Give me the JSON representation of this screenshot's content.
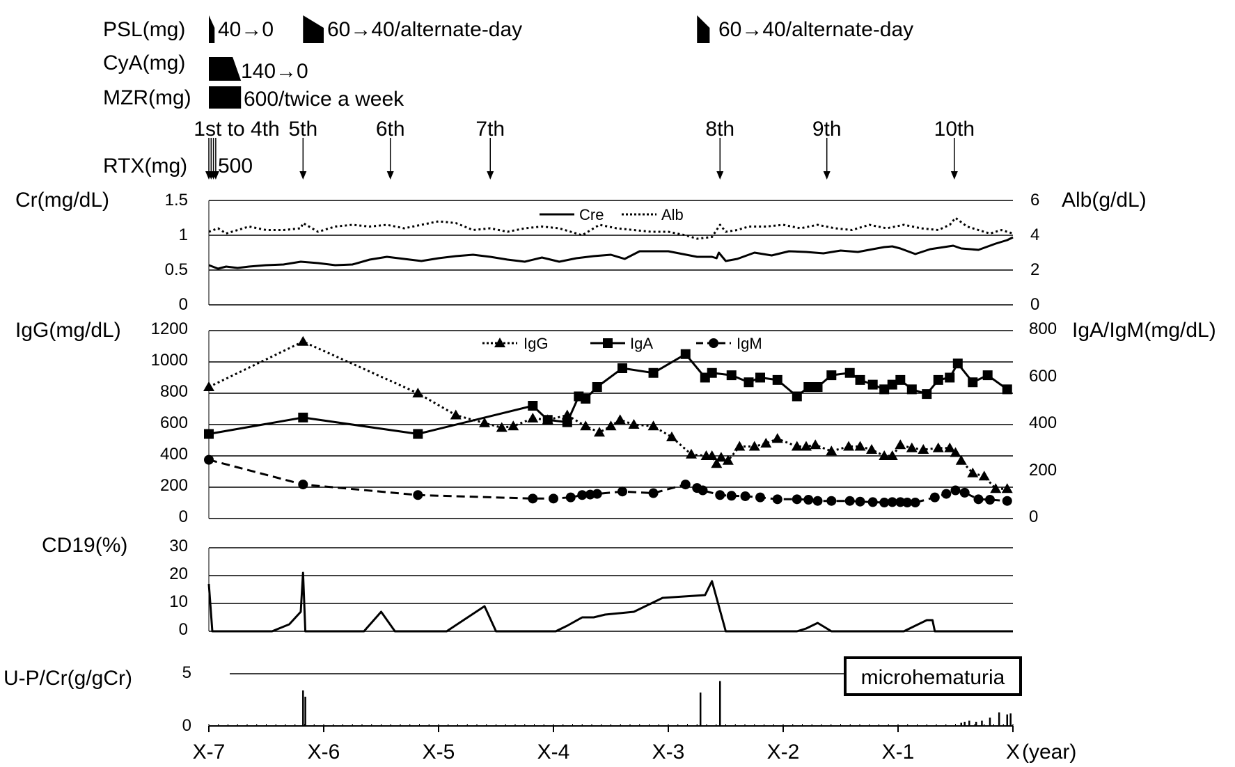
{
  "treatments": [
    {
      "name": "PSL(mg)",
      "blocks": [
        {
          "start": -7.0,
          "end": -6.95,
          "shape": "ramp-up",
          "note": "40→0"
        },
        {
          "start": -6.18,
          "end": -6.0,
          "shape": "ramp-up",
          "note": "60→40/alternate-day"
        },
        {
          "start": -2.75,
          "end": -2.64,
          "shape": "ramp-up",
          "note": "60→40/alternate-day"
        }
      ]
    },
    {
      "name": "CyA(mg)",
      "blocks": [
        {
          "start": -7.0,
          "end": -6.72,
          "shape": "ramp-down",
          "note": "140→0"
        }
      ]
    },
    {
      "name": "MZR(mg)",
      "blocks": [
        {
          "start": -7.0,
          "end": -6.72,
          "shape": "rect",
          "note": "600/twice a week"
        }
      ]
    }
  ],
  "rtx": {
    "name": "RTX(mg)",
    "dose": "500",
    "doses": [
      {
        "label": "1st to 4th",
        "times": [
          -7.0,
          -6.98,
          -6.96,
          -6.94
        ]
      },
      {
        "label": "5th",
        "times": [
          -6.18
        ]
      },
      {
        "label": "6th",
        "times": [
          -5.42
        ]
      },
      {
        "label": "7th",
        "times": [
          -4.55
        ]
      },
      {
        "label": "8th",
        "times": [
          -2.55
        ]
      },
      {
        "label": "9th",
        "times": [
          -1.62
        ]
      },
      {
        "label": "10th",
        "times": [
          -0.51
        ]
      }
    ]
  },
  "annotation": "microhematuria",
  "chart_data": [
    {
      "type": "line",
      "xlabel": "(year)",
      "ylabel": "Cr(mg/dL)",
      "y2label": "Alb(g/dL)",
      "ylim": [
        0,
        1.5
      ],
      "y2lim": [
        0,
        6
      ],
      "yticks": [
        "0",
        "0.5",
        "1",
        "1.5"
      ],
      "y2ticks": [
        "0",
        "2",
        "4",
        "6"
      ],
      "grid": true,
      "legend": "top-center",
      "series": [
        {
          "name": "Cre",
          "axis": "left",
          "style": "solid",
          "color": "#000000",
          "x": [
            -7.0,
            -6.92,
            -6.85,
            -6.75,
            -6.65,
            -6.5,
            -6.35,
            -6.2,
            -6.05,
            -5.9,
            -5.75,
            -5.6,
            -5.45,
            -5.3,
            -5.15,
            -5.0,
            -4.85,
            -4.7,
            -4.55,
            -4.4,
            -4.25,
            -4.1,
            -3.95,
            -3.8,
            -3.65,
            -3.5,
            -3.38,
            -3.25,
            -3.0,
            -2.75,
            -2.62,
            -2.58,
            -2.56,
            -2.5,
            -2.4,
            -2.25,
            -2.1,
            -1.95,
            -1.8,
            -1.65,
            -1.5,
            -1.35,
            -1.22,
            -1.12,
            -1.05,
            -0.98,
            -0.85,
            -0.72,
            -0.6,
            -0.52,
            -0.45,
            -0.3,
            -0.15,
            -0.05,
            0.0
          ],
          "y": [
            0.57,
            0.52,
            0.55,
            0.53,
            0.55,
            0.57,
            0.58,
            0.62,
            0.6,
            0.57,
            0.58,
            0.65,
            0.69,
            0.66,
            0.63,
            0.67,
            0.7,
            0.72,
            0.69,
            0.65,
            0.62,
            0.68,
            0.62,
            0.67,
            0.7,
            0.72,
            0.66,
            0.77,
            0.77,
            0.69,
            0.69,
            0.67,
            0.75,
            0.63,
            0.66,
            0.75,
            0.71,
            0.77,
            0.76,
            0.74,
            0.78,
            0.76,
            0.8,
            0.83,
            0.84,
            0.81,
            0.73,
            0.8,
            0.83,
            0.85,
            0.81,
            0.79,
            0.88,
            0.93,
            0.97
          ]
        },
        {
          "name": "Alb",
          "axis": "right",
          "style": "dotted",
          "color": "#000000",
          "x": [
            -7.0,
            -6.92,
            -6.85,
            -6.75,
            -6.65,
            -6.5,
            -6.35,
            -6.2,
            -6.18,
            -6.05,
            -5.9,
            -5.75,
            -5.6,
            -5.45,
            -5.3,
            -5.15,
            -5.0,
            -4.85,
            -4.7,
            -4.55,
            -4.4,
            -4.25,
            -4.1,
            -3.95,
            -3.85,
            -3.75,
            -3.6,
            -3.45,
            -3.3,
            -3.15,
            -3.0,
            -2.85,
            -2.75,
            -2.62,
            -2.55,
            -2.5,
            -2.4,
            -2.3,
            -2.15,
            -2.0,
            -1.85,
            -1.7,
            -1.55,
            -1.4,
            -1.25,
            -1.1,
            -0.95,
            -0.8,
            -0.65,
            -0.55,
            -0.5,
            -0.4,
            -0.3,
            -0.2,
            -0.1,
            0.0
          ],
          "y": [
            4.2,
            4.4,
            4.1,
            4.3,
            4.5,
            4.3,
            4.3,
            4.4,
            4.7,
            4.2,
            4.5,
            4.6,
            4.5,
            4.6,
            4.4,
            4.6,
            4.8,
            4.7,
            4.3,
            4.4,
            4.2,
            4.4,
            4.5,
            4.4,
            4.2,
            4.0,
            4.6,
            4.4,
            4.3,
            4.2,
            4.2,
            4.0,
            3.8,
            3.9,
            4.6,
            4.2,
            4.3,
            4.5,
            4.5,
            4.6,
            4.4,
            4.6,
            4.4,
            4.3,
            4.6,
            4.4,
            4.6,
            4.4,
            4.3,
            4.6,
            5.0,
            4.5,
            4.3,
            4.1,
            4.3,
            4.1
          ]
        }
      ]
    },
    {
      "type": "line",
      "ylabel": "IgG(mg/dL)",
      "y2label": "IgA/IgM(mg/dL)",
      "ylim": [
        0,
        1200
      ],
      "y2lim": [
        0,
        800
      ],
      "yticks": [
        "0",
        "200",
        "400",
        "600",
        "800",
        "1000",
        "1200"
      ],
      "y2ticks": [
        "0",
        "200",
        "400",
        "600",
        "800"
      ],
      "grid": true,
      "legend": "top-center",
      "series": [
        {
          "name": "IgG",
          "axis": "left",
          "style": "dotted",
          "marker": "triangle",
          "color": "#000000",
          "x": [
            -7.0,
            -6.18,
            -5.18,
            -4.85,
            -4.6,
            -4.45,
            -4.35,
            -4.18,
            -4.05,
            -3.88,
            -3.72,
            -3.6,
            -3.5,
            -3.42,
            -3.3,
            -3.13,
            -2.97,
            -2.8,
            -2.67,
            -2.62,
            -2.58,
            -2.54,
            -2.48,
            -2.38,
            -2.25,
            -2.15,
            -2.05,
            -1.88,
            -1.8,
            -1.72,
            -1.58,
            -1.43,
            -1.33,
            -1.23,
            -1.12,
            -1.05,
            -0.98,
            -0.88,
            -0.78,
            -0.65,
            -0.55,
            -0.5,
            -0.45,
            -0.35,
            -0.25,
            -0.15,
            -0.05
          ],
          "y": [
            840,
            1130,
            800,
            660,
            610,
            580,
            590,
            640,
            630,
            660,
            590,
            550,
            590,
            630,
            600,
            590,
            520,
            410,
            400,
            400,
            350,
            390,
            370,
            460,
            460,
            480,
            510,
            460,
            460,
            470,
            430,
            460,
            460,
            440,
            400,
            400,
            470,
            450,
            440,
            450,
            450,
            420,
            370,
            290,
            270,
            190,
            190
          ]
        },
        {
          "name": "IgA",
          "axis": "right",
          "style": "solid",
          "marker": "square",
          "color": "#000000",
          "x": [
            -7.0,
            -6.18,
            -5.18,
            -4.18,
            -4.05,
            -3.88,
            -3.78,
            -3.72,
            -3.62,
            -3.4,
            -3.13,
            -2.85,
            -2.68,
            -2.62,
            -2.45,
            -2.3,
            -2.2,
            -2.05,
            -1.88,
            -1.78,
            -1.7,
            -1.58,
            -1.42,
            -1.33,
            -1.22,
            -1.12,
            -1.05,
            -0.98,
            -0.88,
            -0.75,
            -0.65,
            -0.55,
            -0.48,
            -0.35,
            -0.22,
            -0.05
          ],
          "y": [
            360,
            430,
            360,
            480,
            420,
            410,
            520,
            510,
            560,
            640,
            620,
            700,
            600,
            620,
            610,
            580,
            600,
            590,
            520,
            560,
            560,
            610,
            620,
            590,
            570,
            550,
            570,
            590,
            550,
            530,
            590,
            600,
            660,
            580,
            610,
            550
          ]
        },
        {
          "name": "IgM",
          "axis": "right",
          "style": "dashed",
          "marker": "circle",
          "color": "#000000",
          "x": [
            -7.0,
            -6.18,
            -5.18,
            -4.18,
            -4.0,
            -3.85,
            -3.75,
            -3.68,
            -3.62,
            -3.4,
            -3.13,
            -2.85,
            -2.75,
            -2.7,
            -2.55,
            -2.45,
            -2.33,
            -2.2,
            -2.05,
            -1.88,
            -1.78,
            -1.7,
            -1.58,
            -1.42,
            -1.33,
            -1.22,
            -1.12,
            -1.05,
            -0.98,
            -0.92,
            -0.85,
            -0.68,
            -0.58,
            -0.5,
            -0.42,
            -0.3,
            -0.2,
            -0.05
          ],
          "y": [
            250,
            145,
            100,
            85,
            85,
            90,
            100,
            102,
            105,
            115,
            108,
            145,
            130,
            120,
            100,
            97,
            95,
            90,
            82,
            82,
            80,
            75,
            75,
            75,
            72,
            70,
            68,
            70,
            70,
            68,
            68,
            90,
            105,
            120,
            110,
            82,
            80,
            75
          ]
        }
      ]
    },
    {
      "type": "line",
      "ylabel": "CD19(%)",
      "ylim": [
        0,
        30
      ],
      "yticks": [
        "0",
        "10",
        "20",
        "30"
      ],
      "grid": true,
      "series": [
        {
          "name": "CD19",
          "axis": "left",
          "style": "solid",
          "color": "#000000",
          "x": [
            -7.0,
            -6.97,
            -6.45,
            -6.3,
            -6.2,
            -6.18,
            -6.16,
            -5.65,
            -5.5,
            -5.38,
            -4.93,
            -4.6,
            -4.5,
            -3.98,
            -3.88,
            -3.75,
            -3.65,
            -3.55,
            -3.3,
            -3.05,
            -2.68,
            -2.62,
            -2.5,
            -1.88,
            -1.8,
            -1.7,
            -1.58,
            -0.95,
            -0.85,
            -0.75,
            -0.7,
            -0.68,
            0.0
          ],
          "y": [
            17,
            0,
            0,
            2.5,
            7,
            21,
            0,
            0,
            7,
            0,
            0,
            9,
            0,
            0,
            2,
            5,
            5,
            6,
            7,
            12,
            13,
            18,
            0,
            0,
            1,
            3,
            0,
            0,
            2,
            4,
            4,
            0,
            0
          ]
        }
      ]
    },
    {
      "type": "bar",
      "ylabel": "U-P/Cr(g/gCr)",
      "ylim": [
        0,
        5
      ],
      "yticks": [
        "0",
        "5"
      ],
      "xticks": [
        "X-7",
        "X-6",
        "X-5",
        "X-4",
        "X-3",
        "X-2",
        "X-1",
        "X"
      ],
      "xlim": [
        -7,
        0
      ],
      "grid": true,
      "series": [
        {
          "name": "U-P/Cr",
          "color": "#000000",
          "x": [
            -6.18,
            -6.16,
            -2.72,
            -2.55,
            -0.45,
            -0.42,
            -0.38,
            -0.32,
            -0.27,
            -0.2,
            -0.12,
            -0.05,
            -0.02
          ],
          "y": [
            3.4,
            2.8,
            3.2,
            4.3,
            0.3,
            0.4,
            0.5,
            0.4,
            0.5,
            0.8,
            1.3,
            1.1,
            1.2
          ]
        }
      ]
    }
  ]
}
